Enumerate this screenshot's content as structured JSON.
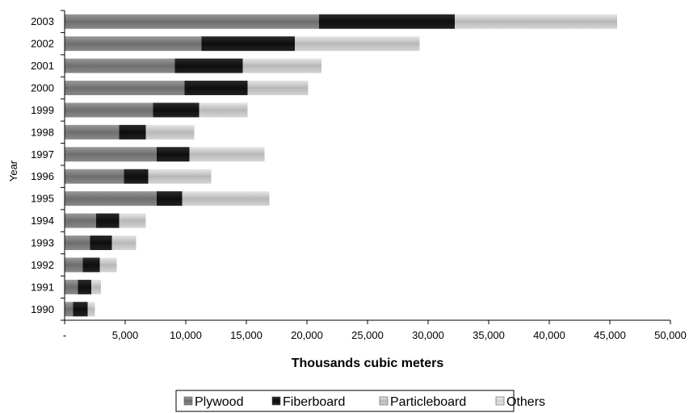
{
  "chart_data": {
    "type": "bar",
    "orientation": "horizontal",
    "stacked": true,
    "categories": [
      "2003",
      "2002",
      "2001",
      "2000",
      "1999",
      "1998",
      "1997",
      "1996",
      "1995",
      "1994",
      "1993",
      "1992",
      "1991",
      "1990"
    ],
    "series": [
      {
        "name": "Plywood",
        "color": "#7a7a7a",
        "values": [
          21000,
          11300,
          9100,
          9900,
          7300,
          4500,
          7600,
          4900,
          7600,
          2600,
          2100,
          1500,
          1100,
          700
        ]
      },
      {
        "name": "Fiberboard",
        "color": "#1a1a1a",
        "values": [
          11200,
          7700,
          5600,
          5200,
          3800,
          2200,
          2700,
          2000,
          2100,
          1900,
          1800,
          1400,
          1100,
          1200
        ]
      },
      {
        "name": "Particleboard",
        "color": "#c8c8c8",
        "values": [
          13400,
          10300,
          6500,
          5000,
          4000,
          4000,
          6200,
          5200,
          7200,
          2200,
          2000,
          1400,
          800,
          600
        ]
      },
      {
        "name": "Others",
        "color": "#e0e0e0",
        "values": [
          0,
          0,
          0,
          0,
          0,
          0,
          0,
          0,
          0,
          0,
          0,
          0,
          0,
          0
        ]
      }
    ],
    "xlim": [
      0,
      50000
    ],
    "xticks": [
      0,
      5000,
      10000,
      15000,
      20000,
      25000,
      30000,
      35000,
      40000,
      45000,
      50000
    ],
    "xtick_labels": [
      "-",
      "5,000",
      "10,000",
      "15,000",
      "20,000",
      "25,000",
      "30,000",
      "35,000",
      "40,000",
      "45,000",
      "50,000"
    ],
    "xlabel": "Thousands cubic meters",
    "ylabel": "Year",
    "legend_position": "bottom",
    "grid": false
  }
}
